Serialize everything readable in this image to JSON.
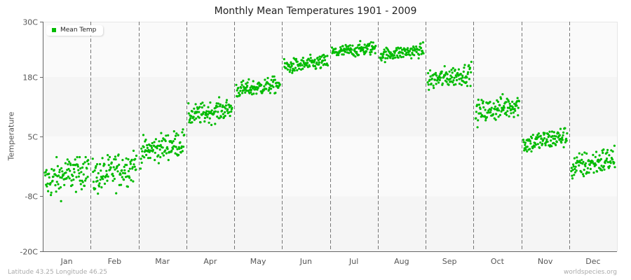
{
  "title": "Monthly Mean Temperatures 1901 - 2009",
  "footer": {
    "location": "Latitude 43.25 Longitude 46.25",
    "source": "worldspecies.org"
  },
  "legend": {
    "label": "Mean Temp",
    "color": "#00bb00"
  },
  "chart_data": {
    "type": "scatter",
    "title": "Monthly Mean Temperatures 1901 - 2009",
    "xlabel": "",
    "ylabel": "Temperature",
    "ylim": [
      -20,
      30
    ],
    "yticks": [
      -20,
      -8,
      5,
      18,
      30
    ],
    "ytick_labels": [
      "-20C",
      "-8C",
      "5C",
      "18C",
      "30C"
    ],
    "categories": [
      "Jan",
      "Feb",
      "Mar",
      "Apr",
      "May",
      "Jun",
      "Jul",
      "Aug",
      "Sep",
      "Oct",
      "Nov",
      "Dec"
    ],
    "years": [
      1901,
      2009
    ],
    "points_per_month": 109,
    "series": [
      {
        "name": "Mean Temp",
        "color": "#00bb00",
        "monthly_mean": [
          -3.4,
          -2.6,
          2.7,
          10.3,
          15.7,
          20.7,
          23.8,
          23.3,
          18.0,
          11.1,
          4.2,
          -0.8
        ],
        "monthly_min": [
          -12.0,
          -10.0,
          -2.0,
          7.0,
          13.0,
          18.5,
          21.5,
          21.0,
          15.0,
          7.0,
          0.5,
          -6.0
        ],
        "monthly_max": [
          0.5,
          2.0,
          7.0,
          14.0,
          18.5,
          23.5,
          26.0,
          25.5,
          22.0,
          15.0,
          7.5,
          3.0
        ]
      }
    ],
    "grid": {
      "vertical_dashed_month_separators": true,
      "horizontal_bands": true
    },
    "legend_position": "top-left"
  }
}
